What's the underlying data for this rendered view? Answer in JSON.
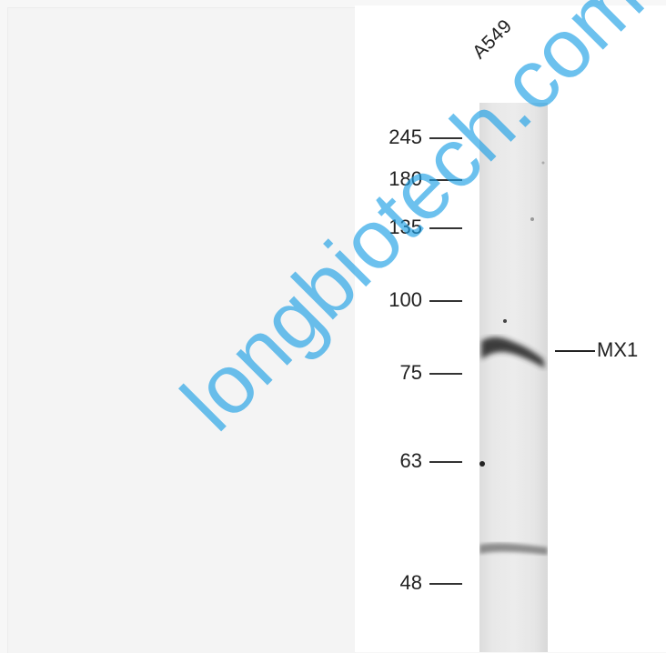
{
  "blot": {
    "lane_label": "A549",
    "target_label": "MX1",
    "markers": [
      "245",
      "180",
      "135",
      "100",
      "75",
      "63",
      "48"
    ]
  },
  "watermark": {
    "text": "longbiotech.com"
  }
}
